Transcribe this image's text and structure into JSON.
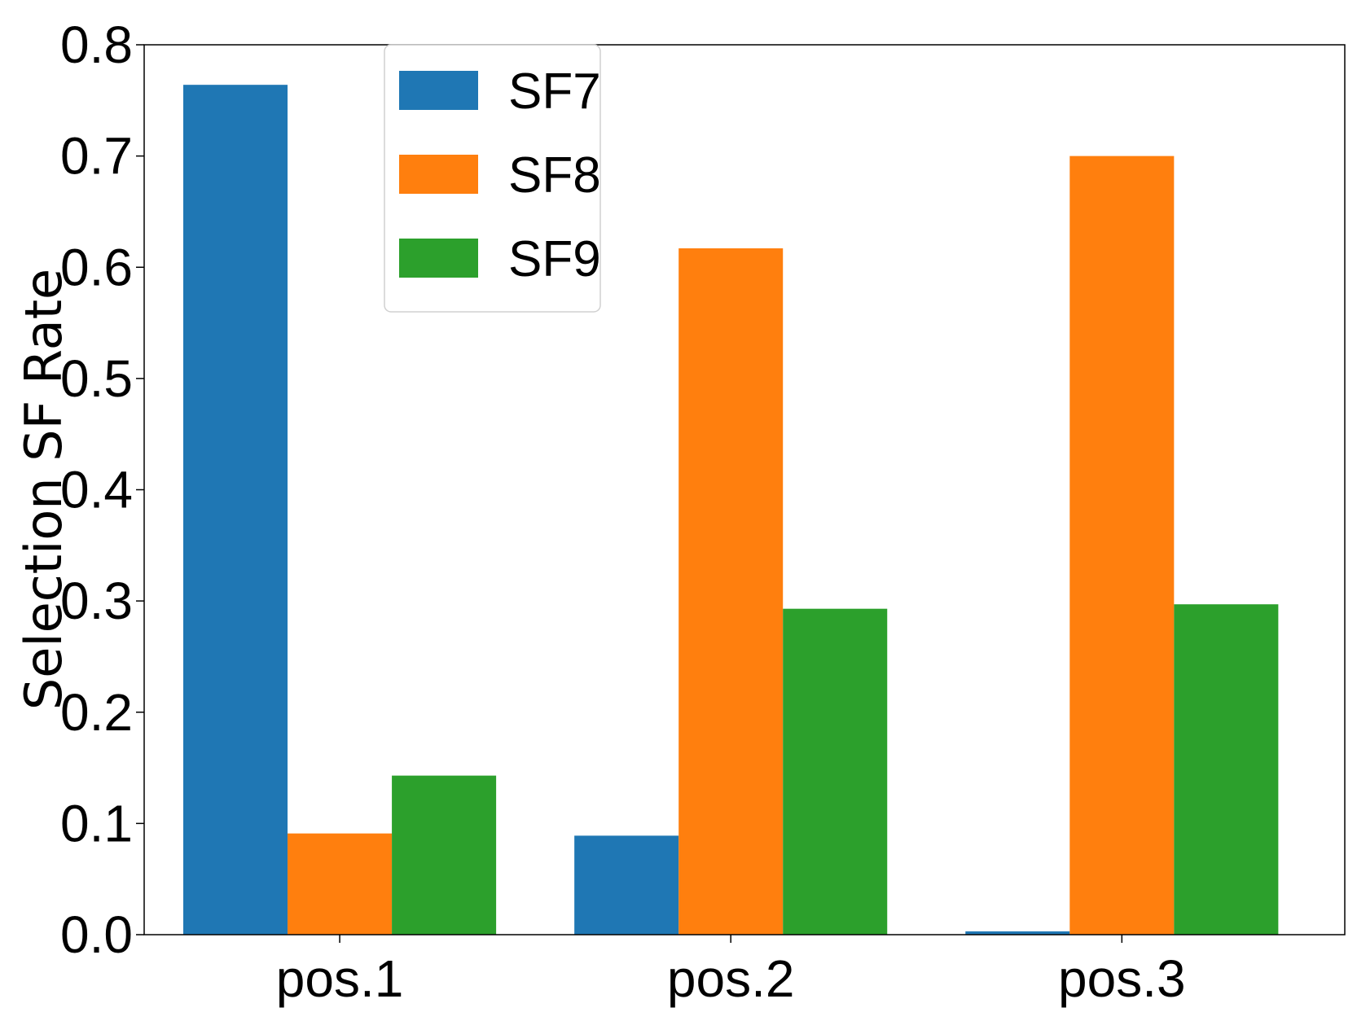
{
  "chart_data": {
    "type": "bar",
    "title": "",
    "xlabel": "",
    "ylabel": "Selection SF Rate",
    "categories": [
      "pos.1",
      "pos.2",
      "pos.3"
    ],
    "series": [
      {
        "name": "SF7",
        "values": [
          0.764,
          0.089,
          0.003
        ],
        "color": "#1f77b4"
      },
      {
        "name": "SF8",
        "values": [
          0.091,
          0.617,
          0.7
        ],
        "color": "#ff7f0e"
      },
      {
        "name": "SF9",
        "values": [
          0.143,
          0.293,
          0.297
        ],
        "color": "#2ca02c"
      }
    ],
    "ylim": [
      0,
      0.8
    ],
    "yticks": [
      "0.0",
      "0.1",
      "0.2",
      "0.3",
      "0.4",
      "0.5",
      "0.6",
      "0.7",
      "0.8"
    ],
    "grid": false,
    "legend_position": "top-left"
  }
}
